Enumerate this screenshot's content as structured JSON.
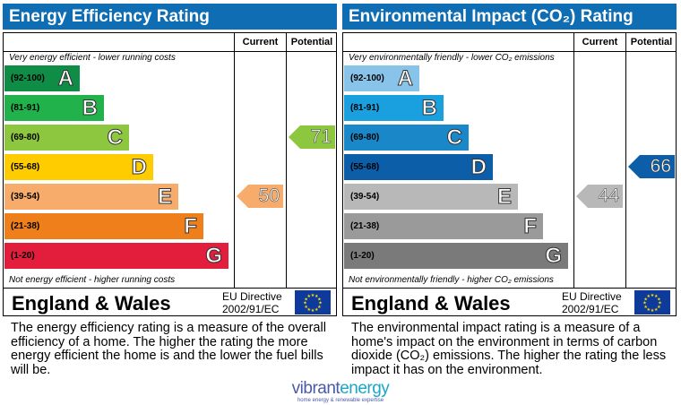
{
  "eer": {
    "title": "Energy Efficiency Rating",
    "col_current": "Current",
    "col_potential": "Potential",
    "note_top": "Very energy efficient - lower running costs",
    "note_bottom": "Not energy efficient - higher running costs",
    "bands": [
      {
        "range": "(92-100)",
        "letter": "A",
        "color": "#0f8c45"
      },
      {
        "range": "(81-91)",
        "letter": "B",
        "color": "#21b24b"
      },
      {
        "range": "(69-80)",
        "letter": "C",
        "color": "#8dc63f"
      },
      {
        "range": "(55-68)",
        "letter": "D",
        "color": "#ffcc00"
      },
      {
        "range": "(39-54)",
        "letter": "E",
        "color": "#f7ac6b"
      },
      {
        "range": "(21-38)",
        "letter": "F",
        "color": "#ef7f1a"
      },
      {
        "range": "(1-20)",
        "letter": "G",
        "color": "#e31d3c"
      }
    ],
    "current": {
      "value": "50",
      "band": "E",
      "color": "#f7ac6b"
    },
    "potential": {
      "value": "71",
      "band": "C",
      "color": "#8dc63f"
    },
    "region": "England & Wales",
    "directive_line1": "EU Directive",
    "directive_line2": "2002/91/EC",
    "description": "The energy efficiency rating is a measure of the overall efficiency of a home. The higher the rating the more energy efficient the home is and the lower the fuel bills will be."
  },
  "eir": {
    "title": "Environmental Impact (CO₂) Rating",
    "col_current": "Current",
    "col_potential": "Potential",
    "note_top": "Very environmentally friendly - lower CO₂ emissions",
    "note_bottom": "Not environmentally friendly - higher CO₂ emissions",
    "bands": [
      {
        "range": "(92-100)",
        "letter": "A",
        "color": "#88c4ea"
      },
      {
        "range": "(81-91)",
        "letter": "B",
        "color": "#1ba0df"
      },
      {
        "range": "(69-80)",
        "letter": "C",
        "color": "#1a87c9"
      },
      {
        "range": "(55-68)",
        "letter": "D",
        "color": "#0c5ea8"
      },
      {
        "range": "(39-54)",
        "letter": "E",
        "color": "#b8b8b8"
      },
      {
        "range": "(21-38)",
        "letter": "F",
        "color": "#9a9a9a"
      },
      {
        "range": "(1-20)",
        "letter": "G",
        "color": "#7a7a7a"
      }
    ],
    "current": {
      "value": "44",
      "band": "E",
      "color": "#b8b8b8"
    },
    "potential": {
      "value": "66",
      "band": "D",
      "color": "#0c5ea8"
    },
    "region": "England & Wales",
    "directive_line1": "EU Directive",
    "directive_line2": "2002/91/EC",
    "description": "The environmental impact rating is a measure of a home's impact on the environment in terms of carbon dioxide (CO₂) emissions. The higher the rating the less impact it has on the environment."
  },
  "logo": {
    "part1": "vibrant",
    "part2": "energy",
    "tagline": "home energy & renewable expertise"
  }
}
